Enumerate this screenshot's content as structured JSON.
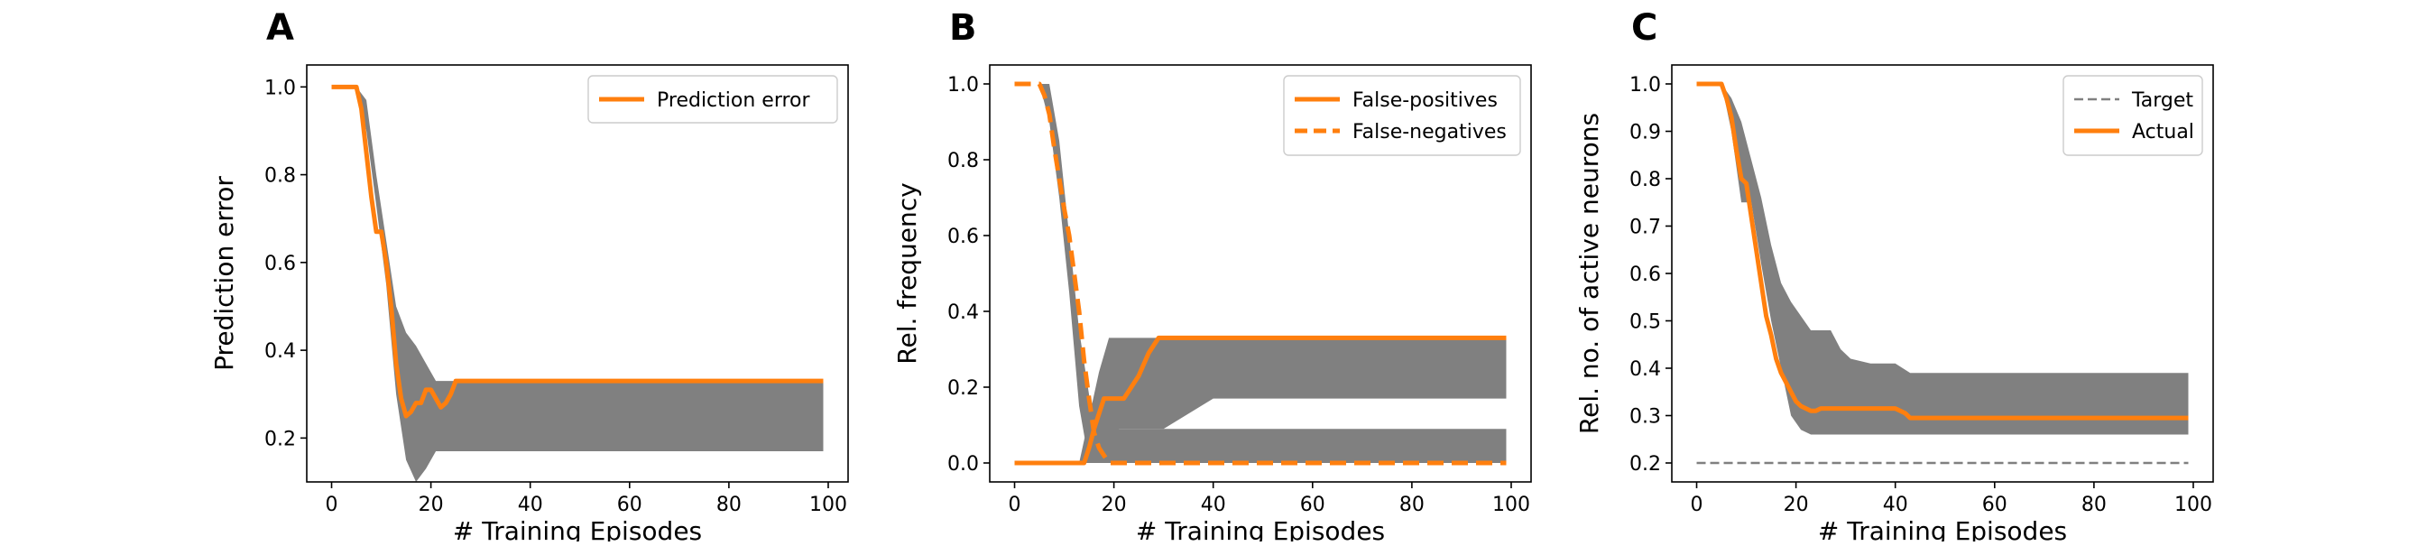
{
  "chart_data": [
    {
      "type": "line",
      "panel_label": "A",
      "xlabel": "# Training Episodes",
      "ylabel": "Prediction error",
      "xlim": [
        -5,
        104
      ],
      "ylim": [
        0.1,
        1.05
      ],
      "xticks": [
        0,
        20,
        40,
        60,
        80,
        100
      ],
      "yticks": [
        0.2,
        0.4,
        0.6,
        0.8,
        1.0
      ],
      "xtick_labels": [
        "0",
        "20",
        "40",
        "60",
        "80",
        "100"
      ],
      "ytick_labels": [
        "0.2",
        "0.4",
        "0.6",
        "0.8",
        "1.0"
      ],
      "legend_position": "upper right",
      "band_color": "#808080",
      "band": {
        "x": [
          0,
          5,
          7,
          9,
          11,
          13,
          15,
          17,
          19,
          21,
          23,
          25,
          27,
          30,
          40,
          60,
          80,
          99
        ],
        "lower": [
          1.0,
          1.0,
          0.9,
          0.73,
          0.55,
          0.3,
          0.15,
          0.1,
          0.13,
          0.17,
          0.17,
          0.17,
          0.17,
          0.17,
          0.17,
          0.17,
          0.17,
          0.17
        ],
        "upper": [
          1.0,
          1.0,
          0.97,
          0.8,
          0.65,
          0.5,
          0.44,
          0.41,
          0.37,
          0.33,
          0.33,
          0.33,
          0.33,
          0.33,
          0.33,
          0.33,
          0.33,
          0.33
        ]
      },
      "series": [
        {
          "name": "Prediction error",
          "color": "#ff7f0e",
          "dash": "solid",
          "x": [
            0,
            5,
            6,
            7,
            8,
            9,
            10,
            11,
            12,
            13,
            14,
            15,
            16,
            17,
            18,
            19,
            20,
            21,
            22,
            23,
            24,
            25,
            26,
            40,
            60,
            80,
            99
          ],
          "y": [
            1.0,
            1.0,
            0.95,
            0.85,
            0.75,
            0.67,
            0.67,
            0.6,
            0.5,
            0.37,
            0.29,
            0.25,
            0.26,
            0.28,
            0.28,
            0.31,
            0.31,
            0.29,
            0.27,
            0.28,
            0.3,
            0.33,
            0.33,
            0.33,
            0.33,
            0.33,
            0.33
          ]
        }
      ]
    },
    {
      "type": "line",
      "panel_label": "B",
      "xlabel": "# Training Episodes",
      "ylabel": "Rel. frequency",
      "xlim": [
        -5,
        104
      ],
      "ylim": [
        -0.05,
        1.05
      ],
      "xticks": [
        0,
        20,
        40,
        60,
        80,
        100
      ],
      "yticks": [
        0.0,
        0.2,
        0.4,
        0.6,
        0.8,
        1.0
      ],
      "xtick_labels": [
        "0",
        "20",
        "40",
        "60",
        "80",
        "100"
      ],
      "ytick_labels": [
        "0.0",
        "0.2",
        "0.4",
        "0.6",
        "0.8",
        "1.0"
      ],
      "legend_position": "upper right",
      "band_color": "#808080",
      "bands": [
        {
          "x": [
            0,
            5,
            7,
            9,
            11,
            13,
            15,
            16,
            17,
            18,
            19,
            20,
            21,
            22,
            25,
            30,
            40,
            60,
            80,
            99
          ],
          "lower": [
            1.0,
            1.0,
            0.9,
            0.7,
            0.45,
            0.15,
            0.0,
            0.0,
            0.0,
            0.0,
            0.0,
            0.0,
            0.0,
            0.0,
            0.0,
            0.0,
            0.0,
            0.0,
            0.0,
            0.0
          ],
          "upper": [
            1.0,
            1.0,
            1.0,
            0.85,
            0.6,
            0.35,
            0.18,
            0.1,
            0.08,
            0.09,
            0.09,
            0.09,
            0.09,
            0.09,
            0.09,
            0.09,
            0.09,
            0.09,
            0.09,
            0.09
          ]
        },
        {
          "x": [
            13,
            15,
            17,
            19,
            20,
            21,
            25,
            30,
            40,
            60,
            80,
            99
          ],
          "lower": [
            0.0,
            0.0,
            0.0,
            0.0,
            0.0,
            0.09,
            0.09,
            0.09,
            0.17,
            0.17,
            0.17,
            0.17
          ],
          "upper": [
            0.0,
            0.12,
            0.24,
            0.33,
            0.33,
            0.33,
            0.33,
            0.33,
            0.33,
            0.33,
            0.33,
            0.33
          ]
        }
      ],
      "series": [
        {
          "name": "False-positives",
          "color": "#ff7f0e",
          "dash": "solid",
          "x": [
            0,
            14,
            15,
            16,
            17,
            18,
            19,
            20,
            21,
            22,
            23,
            24,
            25,
            26,
            27,
            28,
            29,
            30,
            40,
            60,
            80,
            99
          ],
          "y": [
            0.0,
            0.0,
            0.04,
            0.09,
            0.13,
            0.17,
            0.17,
            0.17,
            0.17,
            0.17,
            0.19,
            0.21,
            0.23,
            0.26,
            0.29,
            0.31,
            0.33,
            0.33,
            0.33,
            0.33,
            0.33,
            0.33
          ]
        },
        {
          "name": "False-negatives",
          "color": "#ff7f0e",
          "dash": "dashed",
          "x": [
            0,
            5,
            6,
            7,
            8,
            9,
            10,
            11,
            12,
            13,
            14,
            15,
            16,
            17,
            18,
            19,
            20,
            40,
            60,
            80,
            99
          ],
          "y": [
            1.0,
            1.0,
            0.97,
            0.92,
            0.83,
            0.75,
            0.67,
            0.6,
            0.5,
            0.4,
            0.27,
            0.17,
            0.08,
            0.04,
            0.02,
            0.0,
            0.0,
            0.0,
            0.0,
            0.0,
            0.0
          ]
        }
      ]
    },
    {
      "type": "line",
      "panel_label": "C",
      "xlabel": "# Training Episodes",
      "ylabel": "Rel. no. of active neurons",
      "xlim": [
        -5,
        104
      ],
      "ylim": [
        0.16,
        1.04
      ],
      "xticks": [
        0,
        20,
        40,
        60,
        80,
        100
      ],
      "yticks": [
        0.2,
        0.3,
        0.4,
        0.5,
        0.6,
        0.7,
        0.8,
        0.9,
        1.0
      ],
      "xtick_labels": [
        "0",
        "20",
        "40",
        "60",
        "80",
        "100"
      ],
      "ytick_labels": [
        "0.2",
        "0.3",
        "0.4",
        "0.5",
        "0.6",
        "0.7",
        "0.8",
        "0.9",
        "1.0"
      ],
      "legend_position": "upper right",
      "band_color": "#808080",
      "band": {
        "x": [
          0,
          5,
          7,
          9,
          11,
          13,
          15,
          17,
          19,
          21,
          23,
          25,
          27,
          29,
          31,
          35,
          40,
          43,
          50,
          60,
          80,
          99
        ],
        "lower": [
          1.0,
          1.0,
          0.9,
          0.75,
          0.75,
          0.62,
          0.5,
          0.4,
          0.3,
          0.27,
          0.26,
          0.26,
          0.26,
          0.26,
          0.26,
          0.26,
          0.26,
          0.26,
          0.26,
          0.26,
          0.26,
          0.26
        ],
        "upper": [
          1.0,
          1.0,
          0.97,
          0.92,
          0.84,
          0.76,
          0.66,
          0.58,
          0.54,
          0.51,
          0.48,
          0.48,
          0.48,
          0.44,
          0.42,
          0.41,
          0.41,
          0.39,
          0.39,
          0.39,
          0.39,
          0.39
        ]
      },
      "series": [
        {
          "name": "Target",
          "color": "#808080",
          "dash": "dashed",
          "x": [
            0,
            99
          ],
          "y": [
            0.2,
            0.2
          ]
        },
        {
          "name": "Actual",
          "color": "#ff7f0e",
          "dash": "solid",
          "x": [
            0,
            5,
            6,
            7,
            8,
            9,
            10,
            11,
            12,
            13,
            14,
            15,
            16,
            17,
            18,
            19,
            20,
            21,
            22,
            23,
            24,
            25,
            26,
            27,
            28,
            30,
            35,
            40,
            42,
            43,
            50,
            60,
            80,
            99
          ],
          "y": [
            1.0,
            1.0,
            0.97,
            0.93,
            0.86,
            0.8,
            0.79,
            0.72,
            0.65,
            0.58,
            0.51,
            0.47,
            0.42,
            0.39,
            0.37,
            0.35,
            0.33,
            0.32,
            0.315,
            0.31,
            0.31,
            0.315,
            0.315,
            0.315,
            0.315,
            0.315,
            0.315,
            0.315,
            0.305,
            0.295,
            0.295,
            0.295,
            0.295,
            0.295
          ]
        }
      ]
    }
  ]
}
